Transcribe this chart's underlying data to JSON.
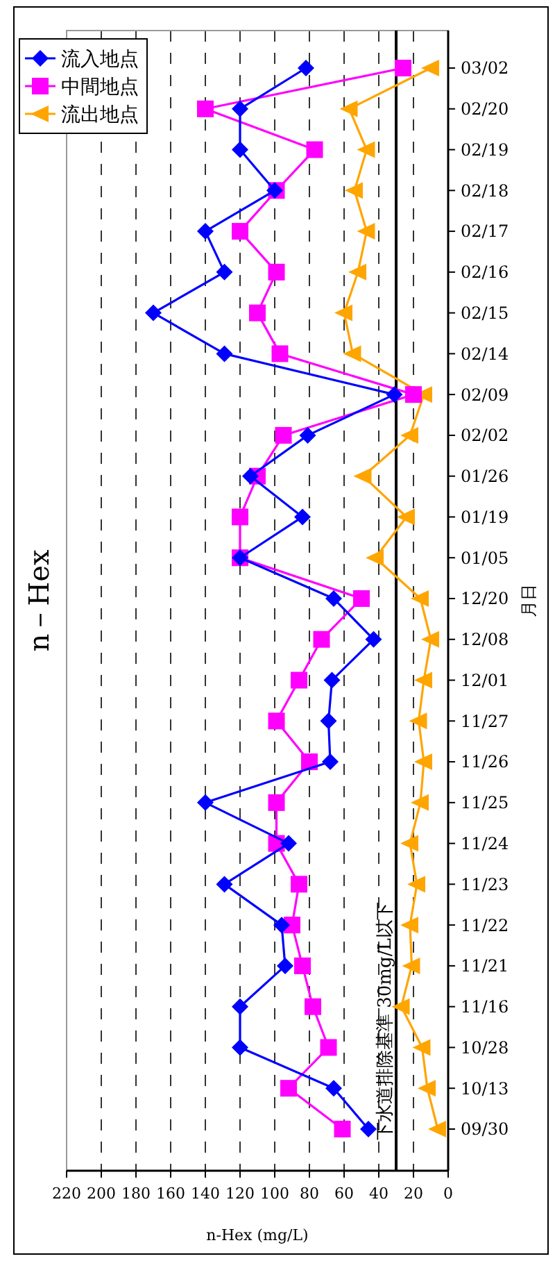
{
  "chart_data": {
    "type": "line",
    "orientation": "horizontal",
    "title": "n－Hex",
    "xlabel": "n-Hex (mg/L)",
    "ylabel": "月日",
    "categories": [
      "03/02",
      "02/20",
      "02/19",
      "02/18",
      "02/17",
      "02/16",
      "02/15",
      "02/14",
      "02/09",
      "02/02",
      "01/26",
      "01/19",
      "01/05",
      "12/20",
      "12/08",
      "12/01",
      "11/27",
      "11/26",
      "11/25",
      "11/24",
      "11/23",
      "11/22",
      "11/21",
      "11/16",
      "10/28",
      "10/13",
      "09/30"
    ],
    "series": [
      {
        "name": "流入地点",
        "color": "#0000ff",
        "marker": "diamond",
        "values": [
          82,
          120,
          120,
          100,
          140,
          129,
          170,
          129,
          31,
          81,
          114,
          84,
          120,
          66,
          43,
          67,
          69,
          68,
          140,
          92,
          129,
          96,
          94,
          120,
          120,
          66,
          46
        ]
      },
      {
        "name": "中間地点",
        "color": "#ff00ff",
        "marker": "square",
        "values": [
          26,
          140,
          77,
          99,
          120,
          99,
          110,
          97,
          20,
          95,
          110,
          120,
          120,
          50,
          73,
          86,
          99,
          80,
          99,
          99,
          86,
          90,
          84,
          78,
          69,
          92,
          61
        ]
      },
      {
        "name": "流出地点",
        "color": "#ffa500",
        "marker": "triangle",
        "values": [
          10,
          57,
          47,
          54,
          47,
          52,
          60,
          55,
          14,
          22,
          49,
          24,
          42,
          16,
          10,
          14,
          17,
          14,
          16,
          22,
          18,
          22,
          21,
          27,
          15,
          12,
          6
        ]
      }
    ],
    "xlim": [
      220,
      0
    ],
    "xticks": [
      220,
      200,
      180,
      160,
      140,
      120,
      100,
      80,
      60,
      40,
      20,
      0
    ],
    "grid": "x",
    "legend": "top left",
    "ref_lines": [
      {
        "axis": "x",
        "value": 30,
        "label": "下水道排除基準 30mg/L以下",
        "color": "#000000"
      }
    ]
  }
}
